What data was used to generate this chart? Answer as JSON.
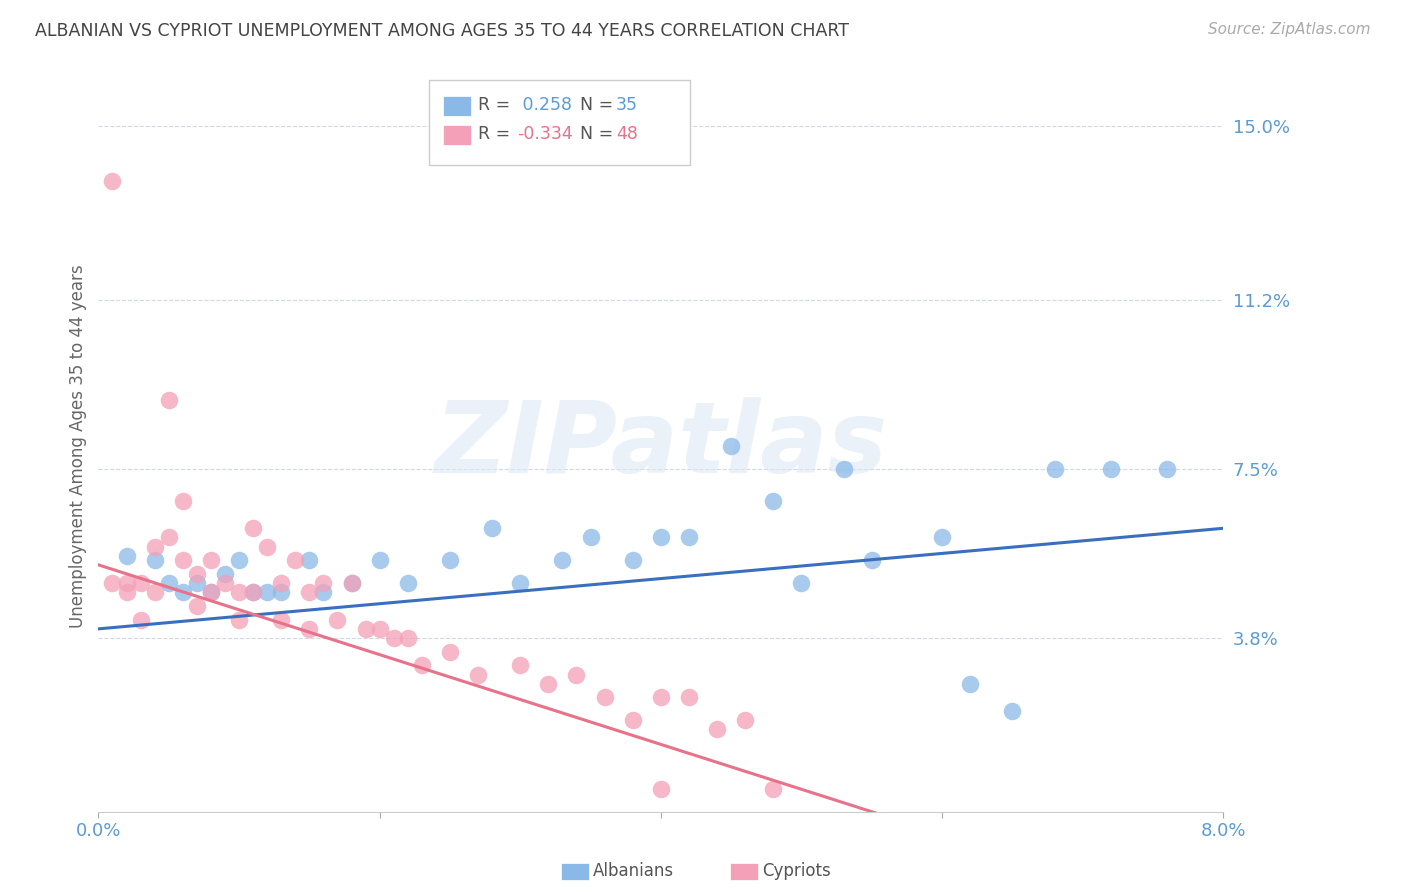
{
  "title": "ALBANIAN VS CYPRIOT UNEMPLOYMENT AMONG AGES 35 TO 44 YEARS CORRELATION CHART",
  "source": "Source: ZipAtlas.com",
  "ylabel": "Unemployment Among Ages 35 to 44 years",
  "xlim": [
    0.0,
    0.08
  ],
  "ylim": [
    0.0,
    0.16
  ],
  "ytick_vals": [
    0.038,
    0.075,
    0.112,
    0.15
  ],
  "ytick_labels": [
    "3.8%",
    "7.5%",
    "11.2%",
    "15.0%"
  ],
  "xtick_vals": [
    0.0,
    0.02,
    0.04,
    0.06,
    0.08
  ],
  "xtick_labels": [
    "0.0%",
    "",
    "",
    "",
    "8.0%"
  ],
  "albanian_color": "#8ab9e8",
  "cypriot_color": "#f4a0b8",
  "albanian_line_color": "#3a6fbf",
  "cypriot_line_color": "#e8728a",
  "legend_R_albanian": "0.258",
  "legend_N_albanian": "35",
  "legend_R_cypriot": "-0.334",
  "legend_N_cypriot": "48",
  "watermark": "ZIPatlas",
  "alb_x": [
    0.002,
    0.004,
    0.005,
    0.006,
    0.007,
    0.008,
    0.009,
    0.01,
    0.011,
    0.012,
    0.013,
    0.015,
    0.016,
    0.018,
    0.02,
    0.022,
    0.025,
    0.028,
    0.03,
    0.033,
    0.035,
    0.038,
    0.04,
    0.042,
    0.045,
    0.048,
    0.05,
    0.053,
    0.055,
    0.06,
    0.062,
    0.065,
    0.068,
    0.072,
    0.076
  ],
  "alb_y": [
    0.056,
    0.055,
    0.05,
    0.048,
    0.05,
    0.048,
    0.052,
    0.055,
    0.048,
    0.048,
    0.048,
    0.055,
    0.048,
    0.05,
    0.055,
    0.05,
    0.055,
    0.062,
    0.05,
    0.055,
    0.06,
    0.055,
    0.06,
    0.06,
    0.08,
    0.068,
    0.05,
    0.075,
    0.055,
    0.06,
    0.028,
    0.022,
    0.075,
    0.075,
    0.075
  ],
  "cyp_x": [
    0.001,
    0.001,
    0.002,
    0.002,
    0.003,
    0.003,
    0.004,
    0.004,
    0.005,
    0.005,
    0.006,
    0.006,
    0.007,
    0.007,
    0.008,
    0.008,
    0.009,
    0.01,
    0.01,
    0.011,
    0.011,
    0.012,
    0.013,
    0.013,
    0.014,
    0.015,
    0.015,
    0.016,
    0.017,
    0.018,
    0.019,
    0.02,
    0.021,
    0.022,
    0.023,
    0.025,
    0.027,
    0.03,
    0.032,
    0.034,
    0.036,
    0.038,
    0.04,
    0.042,
    0.044,
    0.046,
    0.048,
    0.04
  ],
  "cyp_y": [
    0.05,
    0.138,
    0.05,
    0.048,
    0.05,
    0.042,
    0.058,
    0.048,
    0.09,
    0.06,
    0.068,
    0.055,
    0.052,
    0.045,
    0.055,
    0.048,
    0.05,
    0.048,
    0.042,
    0.062,
    0.048,
    0.058,
    0.05,
    0.042,
    0.055,
    0.048,
    0.04,
    0.05,
    0.042,
    0.05,
    0.04,
    0.04,
    0.038,
    0.038,
    0.032,
    0.035,
    0.03,
    0.032,
    0.028,
    0.03,
    0.025,
    0.02,
    0.025,
    0.025,
    0.018,
    0.02,
    0.005,
    0.005
  ]
}
